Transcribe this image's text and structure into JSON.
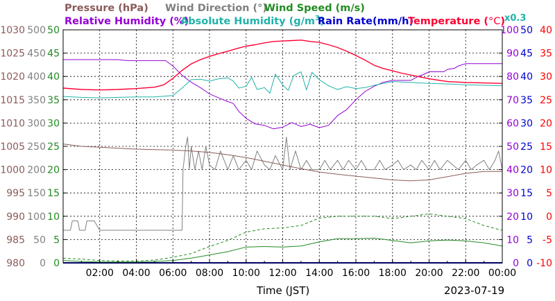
{
  "chart_data": {
    "type": "line",
    "date": "2023-07-19",
    "xlabel": "Time (JST)",
    "x_ticks": [
      "02:00",
      "04:00",
      "06:00",
      "08:00",
      "10:00",
      "12:00",
      "14:00",
      "16:00",
      "18:00",
      "20:00",
      "22:00",
      "00:00"
    ],
    "grid": true,
    "legend": {
      "pressure": "Pressure (hPa)",
      "wind_direction": "Wind Direction (°)",
      "wind_speed": "Wind Speed (m/s)",
      "relative_humidity": "Relative Humidity (%)",
      "absolute_humidity_prefix": "Absolute Humidity (g/m",
      "absolute_humidity_sup": "3",
      "absolute_humidity_suffix": ")",
      "rain_rate": "Rain Rate(mm/h)",
      "temperature_prefix": "Temperature (",
      "temperature_unit": "°C",
      "temperature_suffix": ")",
      "absolute_humidity_scale": "x0.3"
    },
    "axes": {
      "pressure": {
        "ticks": [
          "1030",
          "1025",
          "1020",
          "1015",
          "1010",
          "1005",
          "1000",
          "995",
          "990",
          "985",
          "980"
        ],
        "range": [
          980,
          1030
        ],
        "color": "#8b5a5a"
      },
      "wind_direction": {
        "ticks": [
          "500",
          "450",
          "400",
          "350",
          "300",
          "250",
          "200",
          "150",
          "100",
          "50",
          "0"
        ],
        "range": [
          0,
          500
        ],
        "color": "#808080"
      },
      "wind_speed": {
        "ticks": [
          "50",
          "45",
          "40",
          "35",
          "30",
          "25",
          "20",
          "15",
          "10",
          "5",
          "0"
        ],
        "range": [
          0,
          50
        ],
        "color": "#228b22"
      },
      "relative_humidity": {
        "ticks": [
          "100",
          "90",
          "80",
          "70",
          "60",
          "50",
          "40",
          "30",
          "20",
          "10",
          "0"
        ],
        "range": [
          0,
          100
        ],
        "color": "#9400d3"
      },
      "rain_rate": {
        "ticks": [
          "50",
          "45",
          "40",
          "35",
          "30",
          "25",
          "20",
          "15",
          "10",
          "5",
          "0"
        ],
        "range": [
          0,
          50
        ],
        "color": "#0000cd"
      },
      "temperature": {
        "ticks": [
          "40",
          "35",
          "30",
          "25",
          "20",
          "15",
          "10",
          "5",
          "0",
          "-5",
          "-10"
        ],
        "range": [
          -10,
          40
        ],
        "color": "#ff0000"
      }
    },
    "series": [
      {
        "name": "Temperature",
        "color": "#ff0033",
        "unit": "°C",
        "x": [
          0,
          1,
          2,
          3,
          4,
          5,
          5.5,
          6,
          6.5,
          7,
          7.5,
          8,
          8.5,
          9,
          9.5,
          10,
          10.5,
          11,
          11.5,
          12,
          12.5,
          13,
          13.5,
          14,
          14.5,
          15,
          15.5,
          16,
          16.5,
          17,
          17.5,
          18,
          18.5,
          19,
          20,
          21,
          22,
          23,
          24
        ],
        "y": [
          27.5,
          27.2,
          27.1,
          27.2,
          27.4,
          27.7,
          28.2,
          29.6,
          31.3,
          32.7,
          33.6,
          34.3,
          34.9,
          35.4,
          36.0,
          36.5,
          36.8,
          37.2,
          37.5,
          37.6,
          37.7,
          37.8,
          37.5,
          37.3,
          36.8,
          36.2,
          35.4,
          34.5,
          33.5,
          32.4,
          31.7,
          31.2,
          30.7,
          30.3,
          29.5,
          28.9,
          28.7,
          28.6,
          28.5
        ]
      },
      {
        "name": "Relative Humidity",
        "color": "#9400d3",
        "unit": "%",
        "x": [
          0,
          1,
          2,
          3,
          3.5,
          4,
          5,
          5.6,
          6,
          6.5,
          7,
          7.5,
          8,
          8.5,
          9,
          9.3,
          9.6,
          10,
          10.5,
          11,
          11.5,
          12,
          12.5,
          13,
          13.5,
          14,
          14.5,
          15,
          15.5,
          16,
          16.5,
          17,
          17.5,
          18,
          19,
          19.4,
          19.6,
          20,
          20.8,
          21,
          21.4,
          21.6,
          22,
          24
        ],
        "y": [
          87.2,
          87.2,
          87.2,
          87.2,
          86.8,
          86.8,
          86.8,
          86.8,
          84.5,
          80.5,
          77.5,
          75.2,
          72.5,
          70.8,
          69.2,
          68.4,
          65.0,
          62.0,
          59.6,
          59.0,
          57.5,
          58.2,
          60.2,
          58.5,
          59.5,
          58.0,
          59.0,
          63.2,
          65.8,
          70.0,
          73.5,
          75.8,
          77.5,
          78.3,
          78.3,
          80.0,
          80.5,
          82.0,
          82.0,
          83.0,
          83.5,
          84.5,
          85.5,
          85.5
        ]
      },
      {
        "name": "Absolute Humidity",
        "color": "#20b2aa",
        "unit": "g/m3 x0.3",
        "x": [
          0,
          1,
          2,
          3,
          4,
          5,
          6,
          6.5,
          7,
          7.5,
          8,
          8.5,
          9,
          9.3,
          9.6,
          10,
          10.3,
          10.6,
          11,
          11.3,
          11.6,
          12,
          12.3,
          12.6,
          13,
          13.3,
          13.6,
          14,
          14.5,
          15,
          15.5,
          16,
          16.5,
          17,
          17.5,
          18,
          19,
          20,
          21,
          22,
          23,
          24
        ],
        "y": [
          35.7,
          35.5,
          35.4,
          35.5,
          35.6,
          35.6,
          35.9,
          37.5,
          39.3,
          39.4,
          39.0,
          39.5,
          39.7,
          39.0,
          37.5,
          37.9,
          39.8,
          37.2,
          37.6,
          36.4,
          40.5,
          38.2,
          37.0,
          40.2,
          41.0,
          37.1,
          40.9,
          39.3,
          38.0,
          37.2,
          37.8,
          37.4,
          37.6,
          38.1,
          38.5,
          38.9,
          38.7,
          38.5,
          38.4,
          38.2,
          38.1,
          38.0
        ]
      },
      {
        "name": "Pressure",
        "color": "#8b5a5a",
        "unit": "hPa",
        "x": [
          0,
          1,
          2,
          3,
          4,
          5,
          6,
          7,
          8,
          9,
          10,
          11,
          12,
          13,
          14,
          15,
          16,
          17,
          18,
          19,
          20,
          21,
          22,
          23,
          24
        ],
        "y": [
          1005.5,
          1005.0,
          1004.8,
          1004.6,
          1004.4,
          1004.3,
          1004.2,
          1004.0,
          1003.7,
          1003.2,
          1002.6,
          1001.8,
          1001.0,
          1000.2,
          999.5,
          999.0,
          998.6,
          998.2,
          997.8,
          997.6,
          997.8,
          998.5,
          999.2,
          999.6,
          999.6
        ]
      },
      {
        "name": "Wind Direction",
        "color": "#808080",
        "unit": "°",
        "x": [
          0,
          0.4,
          0.5,
          0.8,
          0.9,
          1.2,
          1.3,
          1.7,
          2.0,
          3.0,
          4.0,
          5.0,
          6.0,
          6.5,
          6.55,
          6.7,
          6.8,
          6.9,
          7.0,
          7.2,
          7.4,
          7.6,
          7.8,
          8.0,
          8.3,
          8.6,
          9.0,
          9.3,
          9.6,
          10.0,
          10.3,
          10.6,
          11.0,
          11.3,
          11.6,
          12.0,
          12.2,
          12.4,
          12.7,
          13.0,
          13.3,
          13.6,
          14.0,
          14.3,
          14.6,
          15.0,
          15.3,
          15.6,
          16.0,
          16.3,
          16.6,
          17.0,
          17.3,
          17.6,
          18.0,
          18.3,
          18.6,
          19.0,
          19.3,
          19.6,
          20.0,
          20.3,
          20.6,
          21.0,
          21.3,
          21.6,
          22.0,
          22.3,
          22.6,
          23.0,
          23.3,
          23.6,
          23.8,
          24.0
        ],
        "y": [
          70,
          70,
          90,
          90,
          70,
          70,
          90,
          90,
          70,
          70,
          70,
          70,
          70,
          70,
          200,
          250,
          270,
          200,
          250,
          200,
          240,
          200,
          250,
          210,
          200,
          240,
          200,
          230,
          200,
          220,
          200,
          240,
          210,
          200,
          230,
          200,
          270,
          200,
          240,
          200,
          220,
          200,
          200,
          220,
          200,
          220,
          200,
          220,
          200,
          220,
          200,
          200,
          220,
          200,
          210,
          220,
          200,
          210,
          200,
          220,
          200,
          220,
          200,
          220,
          210,
          200,
          220,
          200,
          210,
          220,
          200,
          220,
          240,
          200
        ]
      },
      {
        "name": "Wind Speed (avg)",
        "color": "#228b22",
        "unit": "m/s",
        "x": [
          0,
          1,
          2,
          3,
          4,
          5,
          6,
          7,
          8,
          9,
          10,
          11,
          12,
          13,
          14,
          15,
          16,
          17,
          18,
          19,
          20,
          21,
          22,
          23,
          24
        ],
        "y": [
          0.5,
          0.3,
          0.2,
          0.2,
          0.2,
          0.3,
          0.5,
          1.0,
          1.7,
          2.4,
          3.4,
          3.5,
          3.4,
          3.6,
          4.5,
          5.2,
          5.2,
          5.3,
          4.8,
          4.3,
          4.7,
          4.9,
          4.7,
          4.3,
          3.6
        ]
      },
      {
        "name": "Wind Speed (gust)",
        "color": "#228b22",
        "unit": "m/s",
        "x": [
          0,
          1,
          2,
          3,
          4,
          5,
          6,
          7,
          8,
          9,
          10,
          11,
          12,
          13,
          14,
          15,
          16,
          17,
          18,
          19,
          20,
          21,
          22,
          23,
          24
        ],
        "y": [
          1.0,
          0.8,
          0.5,
          0.4,
          0.4,
          0.6,
          1.2,
          2.0,
          3.5,
          4.8,
          6.6,
          7.3,
          7.5,
          8.0,
          9.6,
          10.0,
          10.0,
          10.0,
          9.5,
          10.0,
          10.5,
          10.0,
          9.5,
          8.0,
          7.0
        ]
      },
      {
        "name": "Rain Rate",
        "color": "#0000cd",
        "unit": "mm/h",
        "x": [
          0,
          24
        ],
        "y": [
          0,
          0
        ]
      }
    ]
  }
}
